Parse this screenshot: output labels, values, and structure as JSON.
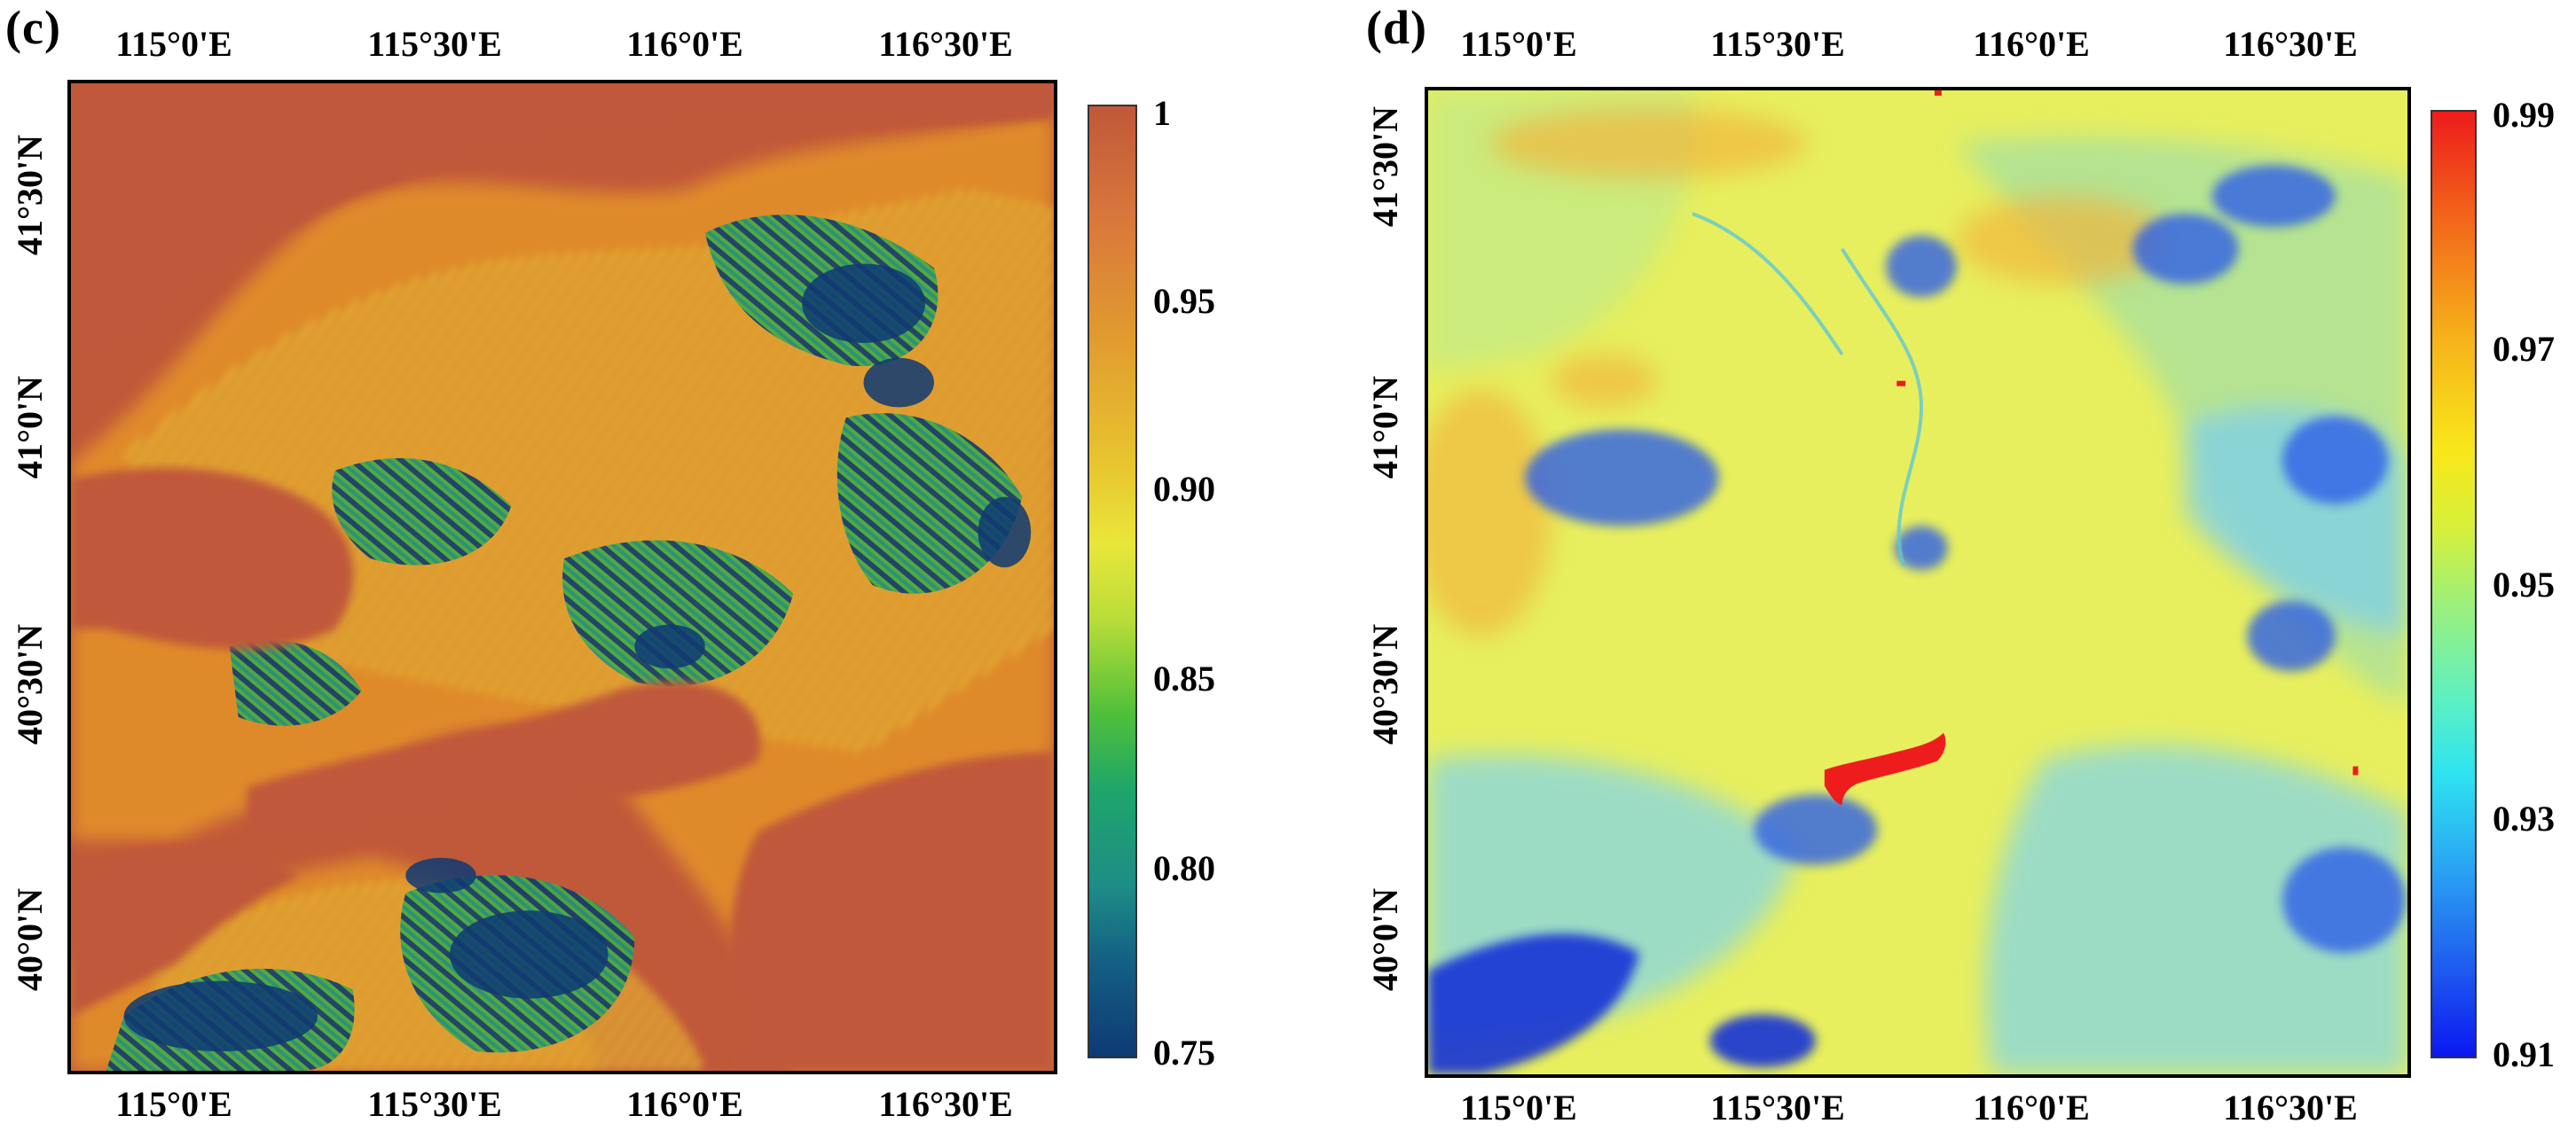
{
  "panel_c": {
    "label": "(c)",
    "x_ticks_top": [
      "115°0'E",
      "115°30'E",
      "116°0'E",
      "116°30'E"
    ],
    "x_ticks_bottom": [
      "115°0'E",
      "115°30'E",
      "116°0'E",
      "116°30'E"
    ],
    "y_ticks": [
      "41°30'N",
      "41°0'N",
      "40°30'N",
      "40°0'N"
    ],
    "colorbar": {
      "labels": [
        "1",
        "0.95",
        "0.90",
        "0.85",
        "0.80",
        "0.75"
      ],
      "max": 1,
      "min": 0.75
    },
    "colors": {
      "dominant": "#c0583a",
      "orange": "#e08a2c",
      "yellow": "#e6cf2a",
      "green": "#4db83a",
      "teal": "#1e8d86",
      "navy": "#0e3a73"
    }
  },
  "panel_d": {
    "label": "(d)",
    "x_ticks_top": [
      "115°0'E",
      "115°30'E",
      "116°0'E",
      "116°30'E"
    ],
    "x_ticks_bottom": [
      "115°0'E",
      "115°30'E",
      "116°0'E",
      "116°30'E"
    ],
    "y_ticks": [
      "41°30'N",
      "41°0'N",
      "40°30'N",
      "40°0'N"
    ],
    "colorbar": {
      "labels": [
        "0.99",
        "0.97",
        "0.95",
        "0.93",
        "0.91"
      ],
      "max": 0.99,
      "min": 0.91
    },
    "colors": {
      "dominant": "#e7ef5e",
      "lightgreen": "#bfe88a",
      "cyan": "#7fd8e6",
      "blue": "#2f5ee8",
      "deepblue": "#1432d6",
      "orange": "#f2b23a",
      "red": "#ee1c1c"
    }
  }
}
